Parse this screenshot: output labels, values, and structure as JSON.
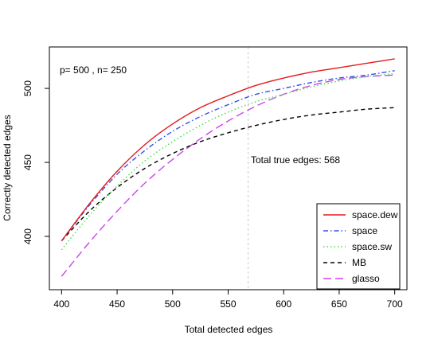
{
  "chart_data": {
    "type": "line",
    "title": "",
    "xlabel": "Total detected edges",
    "ylabel": "Correctly detected edges",
    "xlim": [
      389,
      711
    ],
    "ylim": [
      364,
      528
    ],
    "xticks": [
      400,
      450,
      500,
      550,
      600,
      650,
      700
    ],
    "yticks": [
      400,
      450,
      500
    ],
    "grid": false,
    "legend_position": "bottom-right",
    "annotations": {
      "params": "p= 500 , n= 250",
      "vline_label": "Total true edges: 568",
      "vline_x": 568
    },
    "x": [
      400,
      425,
      450,
      475,
      500,
      525,
      550,
      575,
      600,
      625,
      650,
      675,
      700
    ],
    "series": [
      {
        "name": "space.dew",
        "color": "#e41a1c",
        "dash": "solid",
        "values": [
          397,
          422,
          444,
          462,
          476,
          487,
          495,
          502,
          507,
          511,
          514,
          517,
          520
        ]
      },
      {
        "name": "space",
        "color": "#3050e8",
        "dash": "dashdot",
        "values": [
          397,
          421,
          442,
          458,
          471,
          481,
          489,
          496,
          500,
          504,
          507,
          509,
          512
        ]
      },
      {
        "name": "space.sw",
        "color": "#4ad64a",
        "dash": "dotted",
        "values": [
          391,
          414,
          434,
          451,
          464,
          475,
          484,
          491,
          496,
          501,
          505,
          508,
          510
        ]
      },
      {
        "name": "MB",
        "color": "#000000",
        "dash": "dashed",
        "values": [
          397,
          417,
          433,
          446,
          456,
          464,
          470,
          475,
          479,
          482,
          484,
          486,
          487
        ]
      },
      {
        "name": "glasso",
        "color": "#cc44ee",
        "dash": "longdash",
        "values": [
          373,
          396,
          417,
          436,
          452,
          466,
          478,
          488,
          496,
          502,
          506,
          508,
          509
        ]
      }
    ]
  }
}
